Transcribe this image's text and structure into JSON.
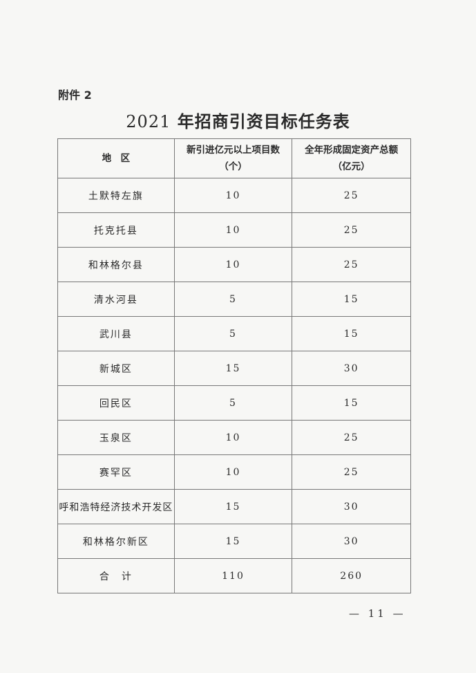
{
  "attachment_label": "附件 2",
  "title": {
    "year": "2021",
    "text": "年招商引资目标任务表"
  },
  "table": {
    "headers": [
      {
        "line1": "地　区",
        "line2": ""
      },
      {
        "line1": "新引进亿元以上项目数",
        "line2": "（个）"
      },
      {
        "line1": "全年形成固定资产总额",
        "line2": "（亿元）"
      }
    ],
    "rows": [
      [
        "土默特左旗",
        "10",
        "25"
      ],
      [
        "托克托县",
        "10",
        "25"
      ],
      [
        "和林格尔县",
        "10",
        "25"
      ],
      [
        "清水河县",
        "5",
        "15"
      ],
      [
        "武川县",
        "5",
        "15"
      ],
      [
        "新城区",
        "15",
        "30"
      ],
      [
        "回民区",
        "5",
        "15"
      ],
      [
        "玉泉区",
        "10",
        "25"
      ],
      [
        "赛罕区",
        "10",
        "25"
      ],
      [
        "呼和浩特经济技术开发区",
        "15",
        "30"
      ],
      [
        "和林格尔新区",
        "15",
        "30"
      ],
      [
        "合　计",
        "110",
        "260"
      ]
    ]
  },
  "page_number": "— 11 —"
}
